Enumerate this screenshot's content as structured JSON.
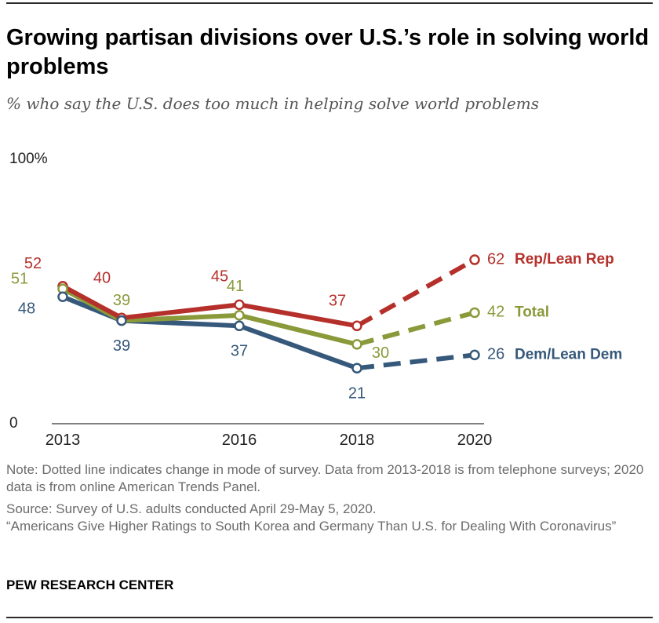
{
  "page": {
    "title": "Growing partisan divisions over U.S.’s role in solving world problems",
    "subtitle": "% who say the U.S. does too much in helping solve world problems",
    "note": "Note: Dotted line indicates change in mode of survey. Data from 2013-2018 is from telephone surveys; 2020 data is from online American Trends Panel.",
    "source": "Source: Survey of U.S. adults conducted April 29-May 5, 2020.",
    "report": "“Americans Give Higher Ratings to South Korea and Germany Than U.S. for Dealing With Coronavirus”",
    "brand": "PEW RESEARCH CENTER"
  },
  "chart_data": {
    "type": "line",
    "y_axis": {
      "ylim": [
        0,
        100
      ],
      "ticks": [
        0,
        100
      ],
      "tick_labels": [
        "0",
        "100%"
      ]
    },
    "x_axis": {
      "ticks": [
        2013,
        2016,
        2018,
        2020
      ],
      "tick_labels": [
        "2013",
        "2016",
        "2018",
        "2020"
      ],
      "xlim": [
        2013,
        2020
      ]
    },
    "x": [
      2013,
      2014,
      2016,
      2018,
      2020
    ],
    "solid_through": 2018,
    "dashed_from": 2018,
    "series": [
      {
        "name": "Rep/Lean Rep",
        "values": [
          52,
          40,
          45,
          37,
          62
        ],
        "labels": [
          "52",
          "40",
          "45",
          "37",
          "62"
        ],
        "color": "#b5302a"
      },
      {
        "name": "Total",
        "values": [
          51,
          39,
          41,
          30,
          42
        ],
        "labels": [
          "51",
          "39",
          "41",
          "30",
          "42"
        ],
        "color": "#8a9a3a"
      },
      {
        "name": "Dem/Lean Dem",
        "values": [
          48,
          39,
          37,
          21,
          26
        ],
        "labels": [
          "48",
          "39",
          "37",
          "21",
          "26"
        ],
        "color": "#36587a"
      }
    ],
    "grid": false
  }
}
